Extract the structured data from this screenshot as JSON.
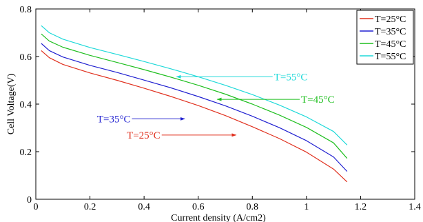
{
  "chart_data": {
    "type": "line",
    "xlabel": "Current density (A/cm2)",
    "ylabel": "Cell Voltage(V)",
    "xlim": [
      0,
      1.4
    ],
    "ylim": [
      0,
      0.8
    ],
    "xticks": [
      0,
      0.2,
      0.4,
      0.6,
      0.8,
      1,
      1.2,
      1.4
    ],
    "yticks": [
      0,
      0.2,
      0.4,
      0.6,
      0.8
    ],
    "xtick_labels": [
      "0",
      "0.2",
      "0.4",
      "0.6",
      "0.8",
      "1",
      "1.2",
      "1.4"
    ],
    "ytick_labels": [
      "0",
      "0.2",
      "0.4",
      "0.6",
      "0.8"
    ],
    "grid": false,
    "legend_position": "top-right",
    "series": [
      {
        "name": "T=25°C",
        "color": "#e0301e",
        "x": [
          0.02,
          0.05,
          0.1,
          0.2,
          0.3,
          0.4,
          0.5,
          0.6,
          0.7,
          0.8,
          0.9,
          1.0,
          1.1,
          1.15
        ],
        "values": [
          0.625,
          0.595,
          0.567,
          0.531,
          0.5,
          0.467,
          0.432,
          0.394,
          0.352,
          0.305,
          0.255,
          0.198,
          0.127,
          0.073
        ]
      },
      {
        "name": "T=35°C",
        "color": "#1f1fd0",
        "x": [
          0.02,
          0.05,
          0.1,
          0.2,
          0.3,
          0.4,
          0.5,
          0.6,
          0.7,
          0.8,
          0.9,
          1.0,
          1.1,
          1.15
        ],
        "values": [
          0.655,
          0.625,
          0.598,
          0.563,
          0.533,
          0.501,
          0.468,
          0.432,
          0.393,
          0.349,
          0.301,
          0.246,
          0.178,
          0.117
        ]
      },
      {
        "name": "T=45°C",
        "color": "#1fbf1f",
        "x": [
          0.02,
          0.05,
          0.1,
          0.2,
          0.3,
          0.4,
          0.5,
          0.6,
          0.7,
          0.8,
          0.9,
          1.0,
          1.1,
          1.15
        ],
        "values": [
          0.695,
          0.665,
          0.639,
          0.605,
          0.575,
          0.545,
          0.513,
          0.479,
          0.442,
          0.4,
          0.354,
          0.302,
          0.237,
          0.172
        ]
      },
      {
        "name": "T=55°C",
        "color": "#1fd9d9",
        "x": [
          0.02,
          0.05,
          0.1,
          0.2,
          0.3,
          0.4,
          0.5,
          0.6,
          0.7,
          0.8,
          0.9,
          1.0,
          1.1,
          1.15
        ],
        "values": [
          0.73,
          0.7,
          0.673,
          0.638,
          0.609,
          0.579,
          0.548,
          0.515,
          0.479,
          0.44,
          0.396,
          0.346,
          0.285,
          0.228
        ]
      }
    ],
    "annotations": [
      {
        "text": "T=55°C",
        "color": "#1fd9d9",
        "text_x": 0.88,
        "text_y": 0.515,
        "arrow_to_x": 0.52,
        "arrow_to_y": 0.515
      },
      {
        "text": "T=45°C",
        "color": "#1fbf1f",
        "text_x": 0.98,
        "text_y": 0.42,
        "arrow_to_x": 0.67,
        "arrow_to_y": 0.42
      },
      {
        "text": "T=35°C",
        "color": "#1f1fd0",
        "text_x": 0.35,
        "text_y": 0.338,
        "arrow_to_x": 0.55,
        "arrow_to_y": 0.338
      },
      {
        "text": "T=25°C",
        "color": "#e0301e",
        "text_x": 0.46,
        "text_y": 0.27,
        "arrow_to_x": 0.74,
        "arrow_to_y": 0.27
      }
    ]
  }
}
